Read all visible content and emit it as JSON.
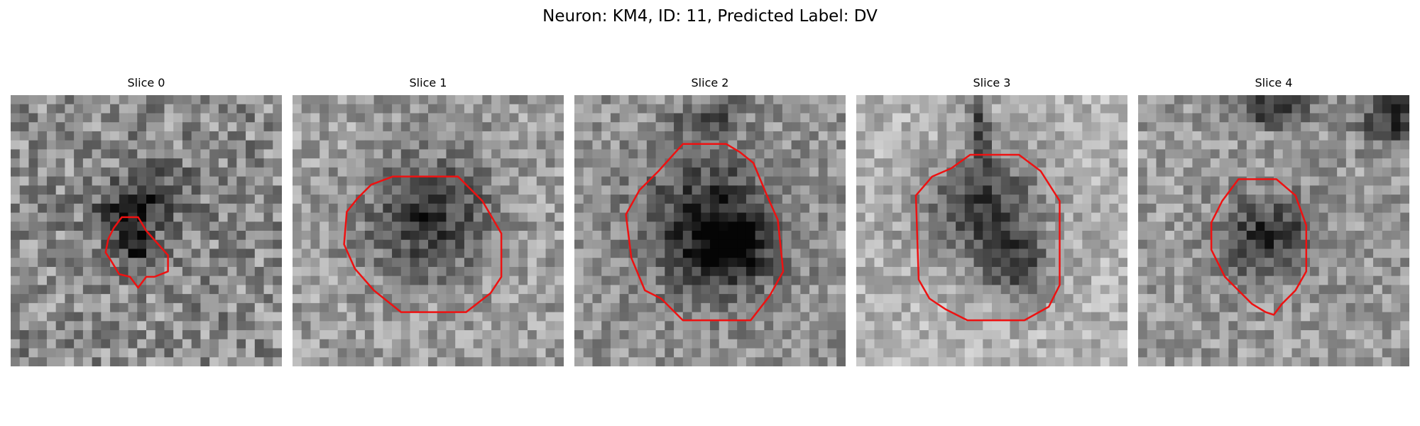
{
  "figure": {
    "suptitle": "Neuron: KM4, ID: 11, Predicted Label: DV",
    "contour_color": "#ee1111",
    "colormap": "grayscale"
  },
  "panels": [
    {
      "title": "Slice 0"
    },
    {
      "title": "Slice 1"
    },
    {
      "title": "Slice 2"
    },
    {
      "title": "Slice 3"
    },
    {
      "title": "Slice 4"
    }
  ]
}
